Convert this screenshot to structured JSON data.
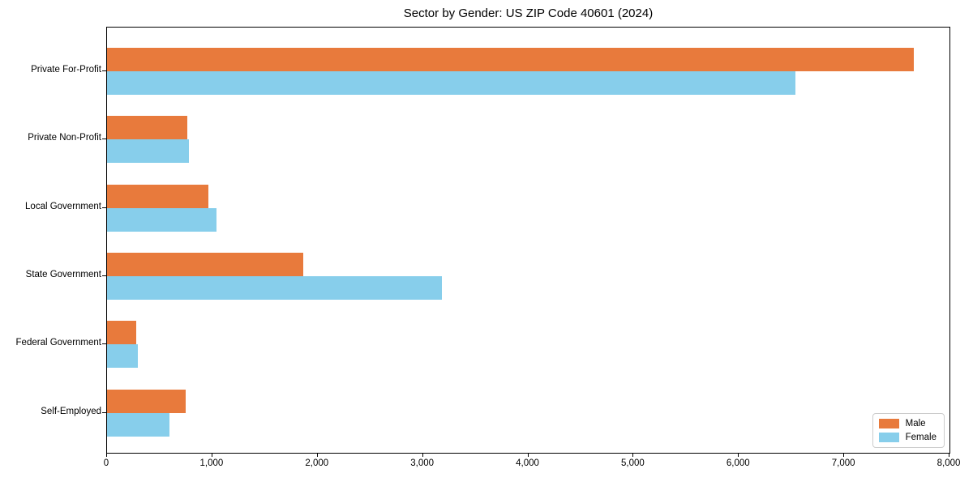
{
  "title": "Sector by Gender: US ZIP Code 40601 (2024)",
  "chart_data": {
    "type": "bar",
    "orientation": "horizontal",
    "title": "Sector by Gender: US ZIP Code 40601 (2024)",
    "xlabel": "",
    "ylabel": "",
    "categories": [
      "Private For-Profit",
      "Private Non-Profit",
      "Local Government",
      "State Government",
      "Federal Government",
      "Self-Employed"
    ],
    "series": [
      {
        "name": "Male",
        "color": "#e87a3c",
        "values": [
          7660,
          760,
          960,
          1860,
          280,
          750
        ]
      },
      {
        "name": "Female",
        "color": "#87ceeb",
        "values": [
          6540,
          780,
          1040,
          3180,
          290,
          590
        ]
      }
    ],
    "xlim": [
      0,
      8000
    ],
    "xticks": [
      0,
      1000,
      2000,
      3000,
      4000,
      5000,
      6000,
      7000,
      8000
    ],
    "xtick_labels": [
      "0",
      "1,000",
      "2,000",
      "3,000",
      "4,000",
      "5,000",
      "6,000",
      "7,000",
      "8,000"
    ],
    "grid": false,
    "legend_position": "lower right",
    "colors": {
      "male": "#e87a3c",
      "female": "#87ceeb",
      "spine": "#000000",
      "background": "#ffffff"
    }
  }
}
